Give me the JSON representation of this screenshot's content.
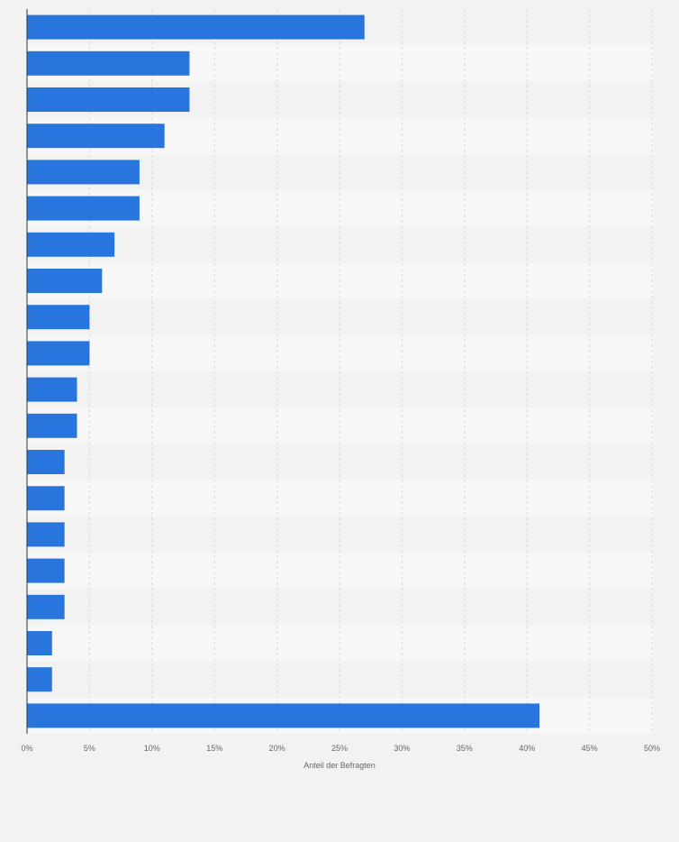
{
  "chart_data": {
    "type": "bar",
    "orientation": "horizontal",
    "categories": [
      "",
      "",
      "",
      "",
      "",
      "",
      "",
      "",
      "",
      "",
      "",
      "",
      "",
      "",
      "",
      "",
      "",
      "",
      "",
      ""
    ],
    "values": [
      27,
      13,
      13,
      11,
      9,
      9,
      7,
      6,
      5,
      5,
      4,
      4,
      3,
      3,
      3,
      3,
      3,
      2,
      2,
      41
    ],
    "xlabel": "Anteil der Befragten",
    "xlim": [
      0,
      50
    ],
    "xticks": [
      0,
      5,
      10,
      15,
      20,
      25,
      30,
      35,
      40,
      45,
      50
    ],
    "tick_labels": [
      "0%",
      "5%",
      "10%",
      "15%",
      "20%",
      "25%",
      "30%",
      "35%",
      "40%",
      "45%",
      "50%"
    ],
    "grid": true,
    "legend": "none",
    "colors": {
      "bar": "#2876dd",
      "band_dark": "#f2f2f2",
      "band_light": "#f7f7f7",
      "grid": "#d9d9d9",
      "axis": "#333333",
      "tick_text": "#666666"
    }
  }
}
